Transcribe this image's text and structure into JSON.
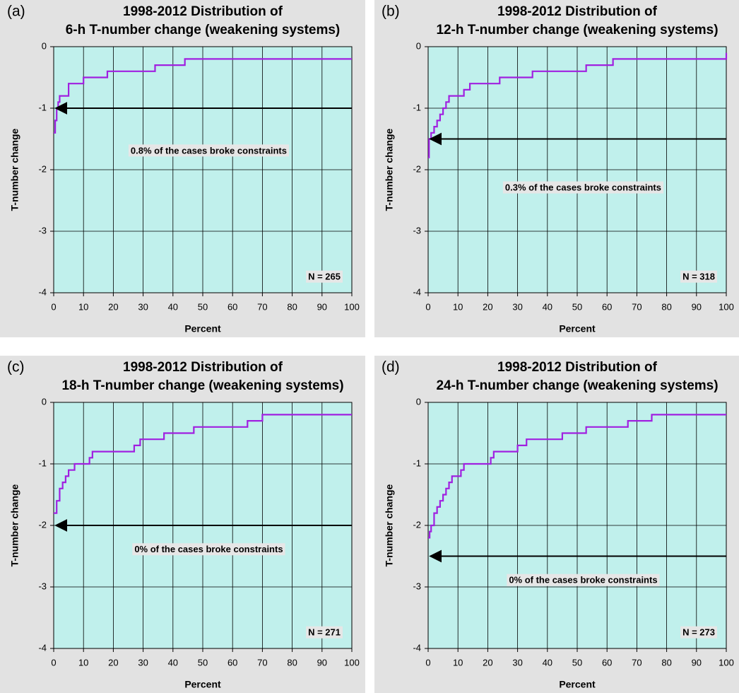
{
  "chart_data": [
    {
      "type": "line",
      "panel": "(a)",
      "title": [
        "1998-2012 Distribution of",
        "6-h T-number change (weakening systems)"
      ],
      "xlabel": "Percent",
      "ylabel": "T-number change",
      "step": "post",
      "color": "#a020e0",
      "x": [
        0,
        0.5,
        1,
        1.5,
        2,
        5,
        10,
        18,
        34,
        44,
        100
      ],
      "values": [
        -1.4,
        -1.2,
        -1,
        -0.9,
        -0.8,
        -0.6,
        -0.5,
        -0.4,
        -0.3,
        -0.2,
        -0.2
      ],
      "xlim": [
        0,
        100
      ],
      "ylim": [
        -4,
        0
      ],
      "xticks": [
        0,
        10,
        20,
        30,
        40,
        50,
        60,
        70,
        80,
        90,
        100
      ],
      "yticks": [
        -4,
        -3,
        -2,
        -1,
        0
      ],
      "grid": true,
      "arrow_y": -1,
      "annotation": "0.8% of the cases broke constraints",
      "n_label": "N = 265"
    },
    {
      "type": "line",
      "panel": "(b)",
      "title": [
        "1998-2012 Distribution of",
        "12-h T-number change (weakening systems)"
      ],
      "xlabel": "Percent",
      "ylabel": "T-number change",
      "step": "post",
      "color": "#a020e0",
      "x": [
        0,
        0.3,
        1,
        2,
        3,
        4,
        5,
        6,
        7,
        12,
        14,
        24,
        35,
        53,
        62,
        100
      ],
      "values": [
        -1.8,
        -1.5,
        -1.4,
        -1.3,
        -1.2,
        -1.1,
        -1,
        -0.9,
        -0.8,
        -0.7,
        -0.6,
        -0.5,
        -0.4,
        -0.3,
        -0.2,
        -0.1
      ],
      "xlim": [
        0,
        100
      ],
      "ylim": [
        -4,
        0
      ],
      "xticks": [
        0,
        10,
        20,
        30,
        40,
        50,
        60,
        70,
        80,
        90,
        100
      ],
      "yticks": [
        -4,
        -3,
        -2,
        -1,
        0
      ],
      "grid": true,
      "arrow_y": -1.5,
      "annotation": "0.3% of the cases broke constraints",
      "n_label": "N = 318"
    },
    {
      "type": "line",
      "panel": "(c)",
      "title": [
        "1998-2012 Distribution of",
        "18-h T-number change (weakening systems)"
      ],
      "xlabel": "Percent",
      "ylabel": "T-number change",
      "step": "post",
      "color": "#a020e0",
      "x": [
        0,
        1,
        2,
        3,
        4,
        5,
        7,
        12,
        13,
        27,
        29,
        37,
        47,
        65,
        70,
        100
      ],
      "values": [
        -1.8,
        -1.6,
        -1.4,
        -1.3,
        -1.2,
        -1.1,
        -1,
        -0.9,
        -0.8,
        -0.7,
        -0.6,
        -0.5,
        -0.4,
        -0.3,
        -0.2,
        -0.2
      ],
      "xlim": [
        0,
        100
      ],
      "ylim": [
        -4,
        0
      ],
      "xticks": [
        0,
        10,
        20,
        30,
        40,
        50,
        60,
        70,
        80,
        90,
        100
      ],
      "yticks": [
        -4,
        -3,
        -2,
        -1,
        0
      ],
      "grid": true,
      "arrow_y": -2,
      "annotation": "0% of the cases broke constraints",
      "n_label": "N = 271"
    },
    {
      "type": "line",
      "panel": "(d)",
      "title": [
        "1998-2012 Distribution of",
        "24-h T-number change (weakening systems)"
      ],
      "xlabel": "Percent",
      "ylabel": "T-number change",
      "step": "post",
      "color": "#a020e0",
      "x": [
        0,
        0.5,
        1,
        2,
        3,
        4,
        5,
        6,
        7,
        8,
        11,
        12,
        21,
        22,
        30,
        33,
        45,
        53,
        67,
        75,
        100
      ],
      "values": [
        -2.2,
        -2.1,
        -2,
        -1.8,
        -1.7,
        -1.6,
        -1.5,
        -1.4,
        -1.3,
        -1.2,
        -1.1,
        -1,
        -0.9,
        -0.8,
        -0.7,
        -0.6,
        -0.5,
        -0.4,
        -0.3,
        -0.2,
        -0.2
      ],
      "xlim": [
        0,
        100
      ],
      "ylim": [
        -4,
        0
      ],
      "xticks": [
        0,
        10,
        20,
        30,
        40,
        50,
        60,
        70,
        80,
        90,
        100
      ],
      "yticks": [
        -4,
        -3,
        -2,
        -1,
        0
      ],
      "grid": true,
      "arrow_y": -2.5,
      "annotation": "0% of the cases broke constraints",
      "n_label": "N = 273"
    }
  ]
}
